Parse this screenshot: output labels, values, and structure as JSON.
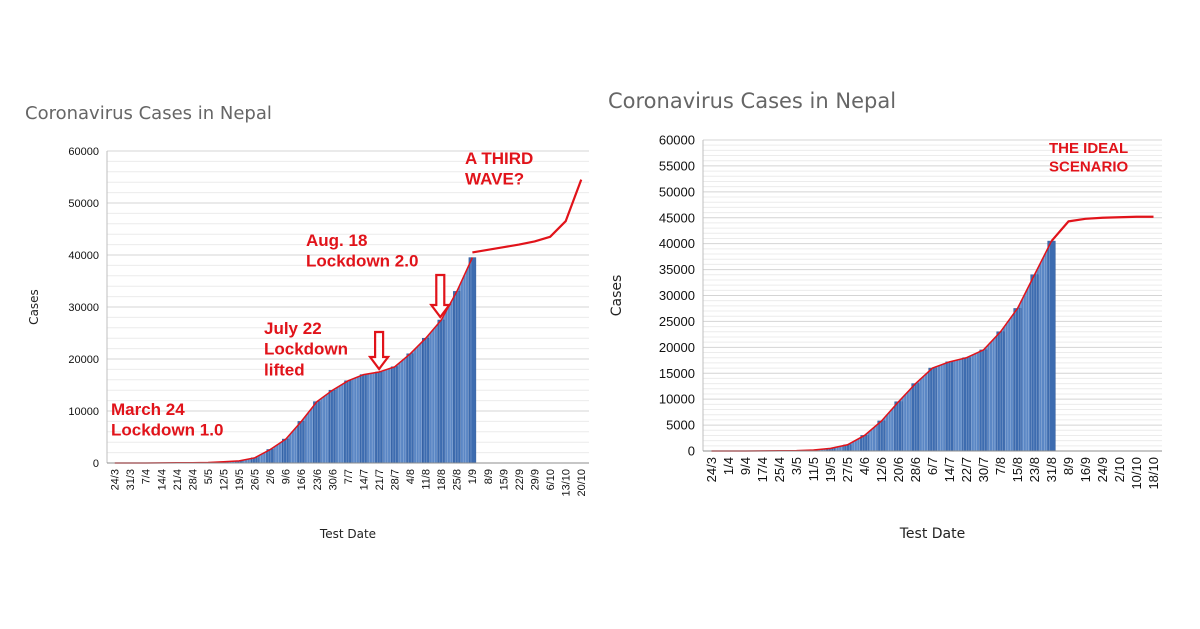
{
  "chart_data": [
    {
      "type": "bar",
      "title": "Coronavirus Cases in Nepal",
      "xlabel": "Test Date",
      "ylabel": "Cases",
      "ylim": [
        0,
        60000
      ],
      "yticks": [
        0,
        10000,
        20000,
        30000,
        40000,
        50000,
        60000
      ],
      "xticks": [
        "24/3",
        "31/3",
        "7/4",
        "14/4",
        "21/4",
        "28/4",
        "5/5",
        "12/5",
        "19/5",
        "26/5",
        "2/6",
        "9/6",
        "16/6",
        "23/6",
        "30/6",
        "7/7",
        "14/7",
        "21/7",
        "28/7",
        "4/8",
        "11/8",
        "18/8",
        "25/8",
        "1/9",
        "8/9",
        "15/9",
        "22/9",
        "29/9",
        "6/10",
        "13/10",
        "20/10"
      ],
      "grid": true,
      "series": [
        {
          "kind": "bars",
          "x": [
            "24/3",
            "31/3",
            "7/4",
            "14/4",
            "21/4",
            "28/4",
            "5/5",
            "12/5",
            "19/5",
            "26/5",
            "2/6",
            "9/6",
            "16/6",
            "23/6",
            "30/6",
            "7/7",
            "14/7",
            "21/7",
            "28/7",
            "4/8",
            "11/8",
            "18/8",
            "25/8",
            "1/9"
          ],
          "values": [
            3,
            5,
            9,
            16,
            40,
            57,
            100,
            250,
            400,
            1000,
            2600,
            4600,
            8000,
            11800,
            14000,
            15800,
            17000,
            17500,
            18500,
            21000,
            24000,
            27500,
            33000,
            39500
          ]
        },
        {
          "kind": "line",
          "x": [
            "1/9",
            "8/9",
            "15/9",
            "22/9",
            "29/9",
            "6/10",
            "13/10",
            "20/10"
          ],
          "values": [
            40500,
            41000,
            41500,
            42000,
            42600,
            43500,
            46500,
            54500
          ]
        }
      ],
      "annotations": [
        {
          "text": [
            "March 24",
            "Lockdown 1.0"
          ]
        },
        {
          "text": [
            "July 22",
            "Lockdown",
            "lifted"
          ],
          "arrow_at": "21/7"
        },
        {
          "text": [
            "Aug. 18",
            "Lockdown 2.0"
          ],
          "arrow_at": "18/8"
        },
        {
          "text": [
            "A THIRD",
            "WAVE?"
          ]
        }
      ]
    },
    {
      "type": "bar",
      "title": "Coronavirus Cases in Nepal",
      "xlabel": "Test Date",
      "ylabel": "Cases",
      "ylim": [
        0,
        60000
      ],
      "yticks": [
        0,
        5000,
        10000,
        15000,
        20000,
        25000,
        30000,
        35000,
        40000,
        45000,
        50000,
        55000,
        60000
      ],
      "xticks": [
        "24/3",
        "1/4",
        "9/4",
        "17/4",
        "25/4",
        "3/5",
        "11/5",
        "19/5",
        "27/5",
        "4/6",
        "12/6",
        "20/6",
        "28/6",
        "6/7",
        "14/7",
        "22/7",
        "30/7",
        "7/8",
        "15/8",
        "23/8",
        "31/8",
        "8/9",
        "16/9",
        "24/9",
        "2/10",
        "10/10",
        "18/10"
      ],
      "grid": true,
      "series": [
        {
          "kind": "bars",
          "x": [
            "24/3",
            "1/4",
            "9/4",
            "17/4",
            "25/4",
            "3/5",
            "11/5",
            "19/5",
            "27/5",
            "4/6",
            "12/6",
            "20/6",
            "28/6",
            "6/7",
            "14/7",
            "22/7",
            "30/7",
            "7/8",
            "15/8",
            "23/8",
            "31/8"
          ],
          "values": [
            3,
            5,
            9,
            30,
            50,
            80,
            200,
            500,
            1200,
            3000,
            5800,
            9500,
            13000,
            16000,
            17200,
            18000,
            19500,
            23000,
            27500,
            34000,
            40500
          ]
        },
        {
          "kind": "line",
          "x": [
            "31/8",
            "8/9",
            "16/9",
            "24/9",
            "2/10",
            "10/10",
            "18/10"
          ],
          "values": [
            40500,
            44300,
            44800,
            45000,
            45100,
            45200,
            45200
          ]
        }
      ],
      "annotations": [
        {
          "text": [
            "THE IDEAL",
            "SCENARIO"
          ]
        }
      ]
    }
  ]
}
